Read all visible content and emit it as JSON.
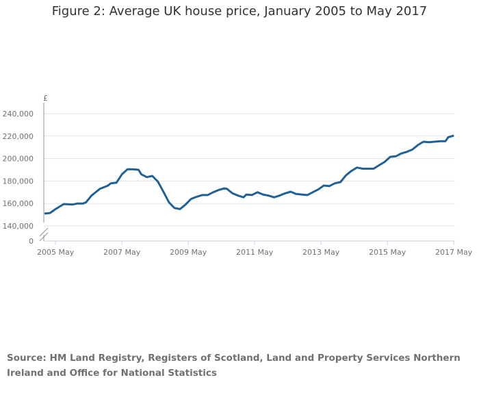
{
  "chart_data": {
    "type": "line",
    "title": "Figure 2: Average UK house price, January 2005 to May 2017",
    "ylabel": "£",
    "xlabel": "",
    "ylim": [
      140000,
      250000
    ],
    "y_ticks": [
      "240,000",
      "220,000",
      "200,000",
      "180,000",
      "160,000",
      "140,000",
      "0"
    ],
    "y_tick_values": [
      240000,
      220000,
      200000,
      180000,
      160000,
      140000
    ],
    "x_ticks": [
      "2005 May",
      "2007 May",
      "2009 May",
      "2011 May",
      "2013 May",
      "2015 May",
      "2017 May"
    ],
    "x_tick_months": [
      4,
      28,
      52,
      76,
      100,
      124,
      148
    ],
    "axis_break": true,
    "grid": true,
    "series": [
      {
        "name": "Average UK house price",
        "color": "#206095",
        "points": [
          [
            "2005-01",
            151000
          ],
          [
            "2005-03",
            151500
          ],
          [
            "2005-05",
            155000
          ],
          [
            "2005-08",
            159500
          ],
          [
            "2005-11",
            159000
          ],
          [
            "2006-01",
            160000
          ],
          [
            "2006-03",
            160000
          ],
          [
            "2006-04",
            161000
          ],
          [
            "2006-06",
            167000
          ],
          [
            "2006-09",
            173000
          ],
          [
            "2006-12",
            176000
          ],
          [
            "2007-01",
            178000
          ],
          [
            "2007-03",
            178500
          ],
          [
            "2007-05",
            186000
          ],
          [
            "2007-07",
            190500
          ],
          [
            "2007-09",
            190500
          ],
          [
            "2007-11",
            190000
          ],
          [
            "2007-12",
            186000
          ],
          [
            "2008-02",
            183500
          ],
          [
            "2008-04",
            184500
          ],
          [
            "2008-06",
            179500
          ],
          [
            "2008-08",
            170500
          ],
          [
            "2008-10",
            161000
          ],
          [
            "2008-12",
            156000
          ],
          [
            "2009-02",
            155000
          ],
          [
            "2009-04",
            159000
          ],
          [
            "2009-06",
            164000
          ],
          [
            "2009-08",
            166000
          ],
          [
            "2009-10",
            167500
          ],
          [
            "2009-12",
            167500
          ],
          [
            "2010-02",
            170000
          ],
          [
            "2010-04",
            172000
          ],
          [
            "2010-06",
            173500
          ],
          [
            "2010-07",
            173000
          ],
          [
            "2010-09",
            169000
          ],
          [
            "2010-11",
            167000
          ],
          [
            "2011-01",
            165500
          ],
          [
            "2011-02",
            168000
          ],
          [
            "2011-04",
            167500
          ],
          [
            "2011-06",
            170000
          ],
          [
            "2011-08",
            168000
          ],
          [
            "2011-10",
            167000
          ],
          [
            "2011-12",
            165500
          ],
          [
            "2012-02",
            167000
          ],
          [
            "2012-04",
            169000
          ],
          [
            "2012-06",
            170500
          ],
          [
            "2012-08",
            168500
          ],
          [
            "2012-10",
            168000
          ],
          [
            "2012-12",
            167500
          ],
          [
            "2013-02",
            170000
          ],
          [
            "2013-04",
            172500
          ],
          [
            "2013-06",
            176000
          ],
          [
            "2013-08",
            175500
          ],
          [
            "2013-10",
            178000
          ],
          [
            "2013-12",
            179000
          ],
          [
            "2014-02",
            185000
          ],
          [
            "2014-04",
            189000
          ],
          [
            "2014-06",
            192000
          ],
          [
            "2014-08",
            191000
          ],
          [
            "2014-10",
            191000
          ],
          [
            "2014-12",
            191000
          ],
          [
            "2015-02",
            194000
          ],
          [
            "2015-04",
            197000
          ],
          [
            "2015-06",
            201500
          ],
          [
            "2015-08",
            202000
          ],
          [
            "2015-10",
            204500
          ],
          [
            "2015-12",
            206000
          ],
          [
            "2016-02",
            208000
          ],
          [
            "2016-04",
            212000
          ],
          [
            "2016-06",
            215000
          ],
          [
            "2016-08",
            214500
          ],
          [
            "2016-10",
            215000
          ],
          [
            "2016-12",
            215500
          ],
          [
            "2017-02",
            215500
          ],
          [
            "2017-03",
            219000
          ],
          [
            "2017-05",
            220500
          ]
        ]
      }
    ]
  },
  "source": "Source: HM Land Registry, Registers of Scotland, Land and Property Services Northern Ireland and Office for National Statistics"
}
